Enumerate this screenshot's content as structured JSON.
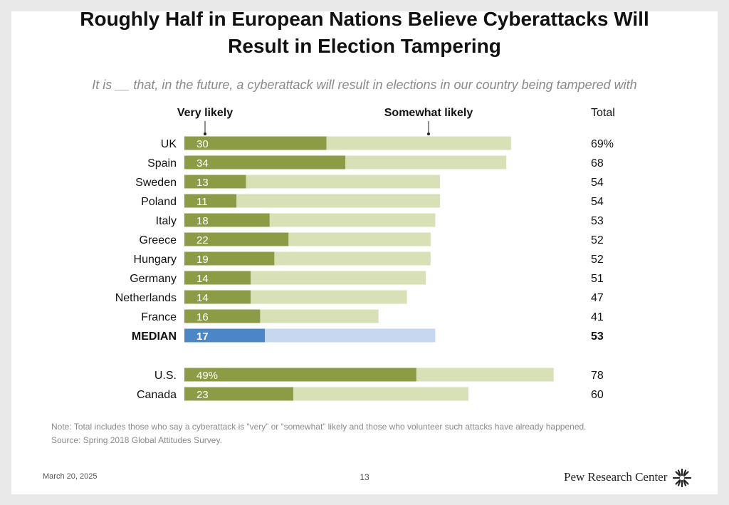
{
  "slide": {
    "title_line1": "Roughly Half in European Nations Believe Cyberattacks Will",
    "title_line2": "Result in Election Tampering",
    "subtitle": "It is __ that, in the future, a cyberattack will result in elections in our country being tampered with",
    "note": "Note: Total includes those who say a cyberattack is “very” or “somewhat” likely and those who volunteer such attacks have already happened.",
    "source": "Source: Spring 2018 Global Attitudes Survey.",
    "date": "March 20, 2025",
    "page_number": "13",
    "brand": "Pew Research Center"
  },
  "colors": {
    "very_likely": "#8c9c45",
    "somewhat_likely": "#d8e0b6",
    "median_very": "#4a86c8",
    "median_somewhat": "#c5d8ef"
  },
  "chart_data": {
    "type": "bar",
    "orientation": "horizontal",
    "stacked": true,
    "legend": [
      "Very likely",
      "Somewhat likely"
    ],
    "total_label": "Total",
    "xlim": [
      0,
      100
    ],
    "categories": [
      "UK",
      "Spain",
      "Sweden",
      "Poland",
      "Italy",
      "Greece",
      "Hungary",
      "Germany",
      "Netherlands",
      "France",
      "MEDIAN",
      "U.S.",
      "Canada"
    ],
    "series": [
      {
        "name": "Very likely",
        "values": [
          30,
          34,
          13,
          11,
          18,
          22,
          19,
          14,
          14,
          16,
          17,
          49,
          23
        ]
      },
      {
        "name": "Somewhat likely",
        "values": [
          39,
          34,
          41,
          43,
          35,
          30,
          33,
          37,
          33,
          25,
          36,
          29,
          37
        ]
      }
    ],
    "totals": [
      69,
      68,
      54,
      54,
      53,
      52,
      52,
      51,
      47,
      41,
      53,
      78,
      60
    ],
    "value_labels": [
      "30",
      "34",
      "13",
      "11",
      "18",
      "22",
      "19",
      "14",
      "14",
      "16",
      "17",
      "49%",
      "23"
    ],
    "total_labels": [
      "69%",
      "68",
      "54",
      "54",
      "53",
      "52",
      "52",
      "51",
      "47",
      "41",
      "53",
      "78",
      "60"
    ],
    "highlight": "MEDIAN"
  }
}
